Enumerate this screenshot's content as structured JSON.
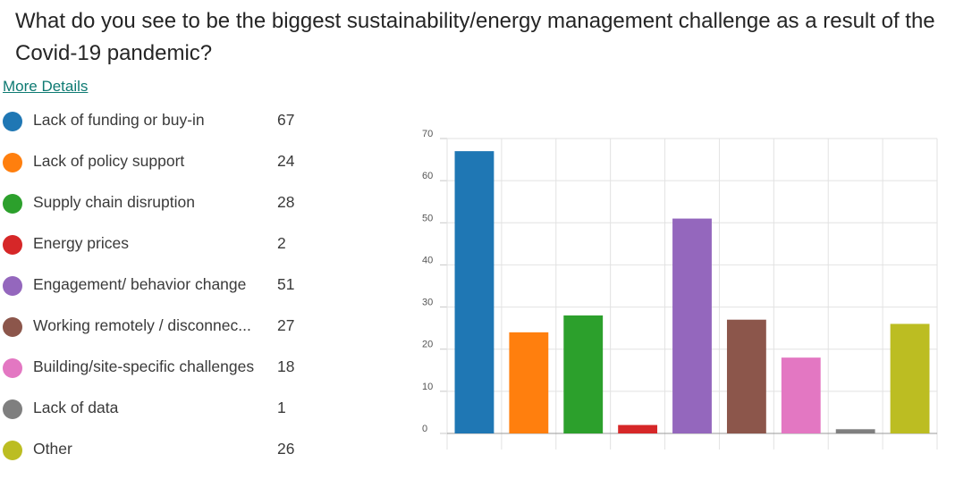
{
  "question": "What do you see to be the biggest sustainability/energy management challenge as a result of the Covid-19 pandemic?",
  "more_details_label": "More Details",
  "legend": [
    {
      "label": "Lack of funding or buy-in",
      "value": "67",
      "color": "#1f77b4"
    },
    {
      "label": "Lack of policy support",
      "value": "24",
      "color": "#ff7f0e"
    },
    {
      "label": "Supply chain disruption",
      "value": "28",
      "color": "#2ca02c"
    },
    {
      "label": "Energy prices",
      "value": "2",
      "color": "#d62728"
    },
    {
      "label": "Engagement/ behavior change",
      "value": "51",
      "color": "#9467bd"
    },
    {
      "label": "Working remotely / disconnec...",
      "value": "27",
      "color": "#8c564b"
    },
    {
      "label": "Building/site-specific challenges",
      "value": "18",
      "color": "#e377c2"
    },
    {
      "label": "Lack of data",
      "value": "1",
      "color": "#7f7f7f"
    },
    {
      "label": "Other",
      "value": "26",
      "color": "#bcbd22"
    }
  ],
  "chart_data": {
    "type": "bar",
    "categories": [
      "Lack of funding or buy-in",
      "Lack of policy support",
      "Supply chain disruption",
      "Energy prices",
      "Engagement/ behavior change",
      "Working remotely / disconnec...",
      "Building/site-specific challenges",
      "Lack of data",
      "Other"
    ],
    "values": [
      67,
      24,
      28,
      2,
      51,
      27,
      18,
      1,
      26
    ],
    "colors": [
      "#1f77b4",
      "#ff7f0e",
      "#2ca02c",
      "#d62728",
      "#9467bd",
      "#8c564b",
      "#e377c2",
      "#7f7f7f",
      "#bcbd22"
    ],
    "ylim": [
      0,
      70
    ],
    "yticks": [
      "0",
      "10",
      "20",
      "30",
      "40",
      "50",
      "60",
      "70"
    ],
    "grid": true,
    "legend_placement": "left"
  }
}
